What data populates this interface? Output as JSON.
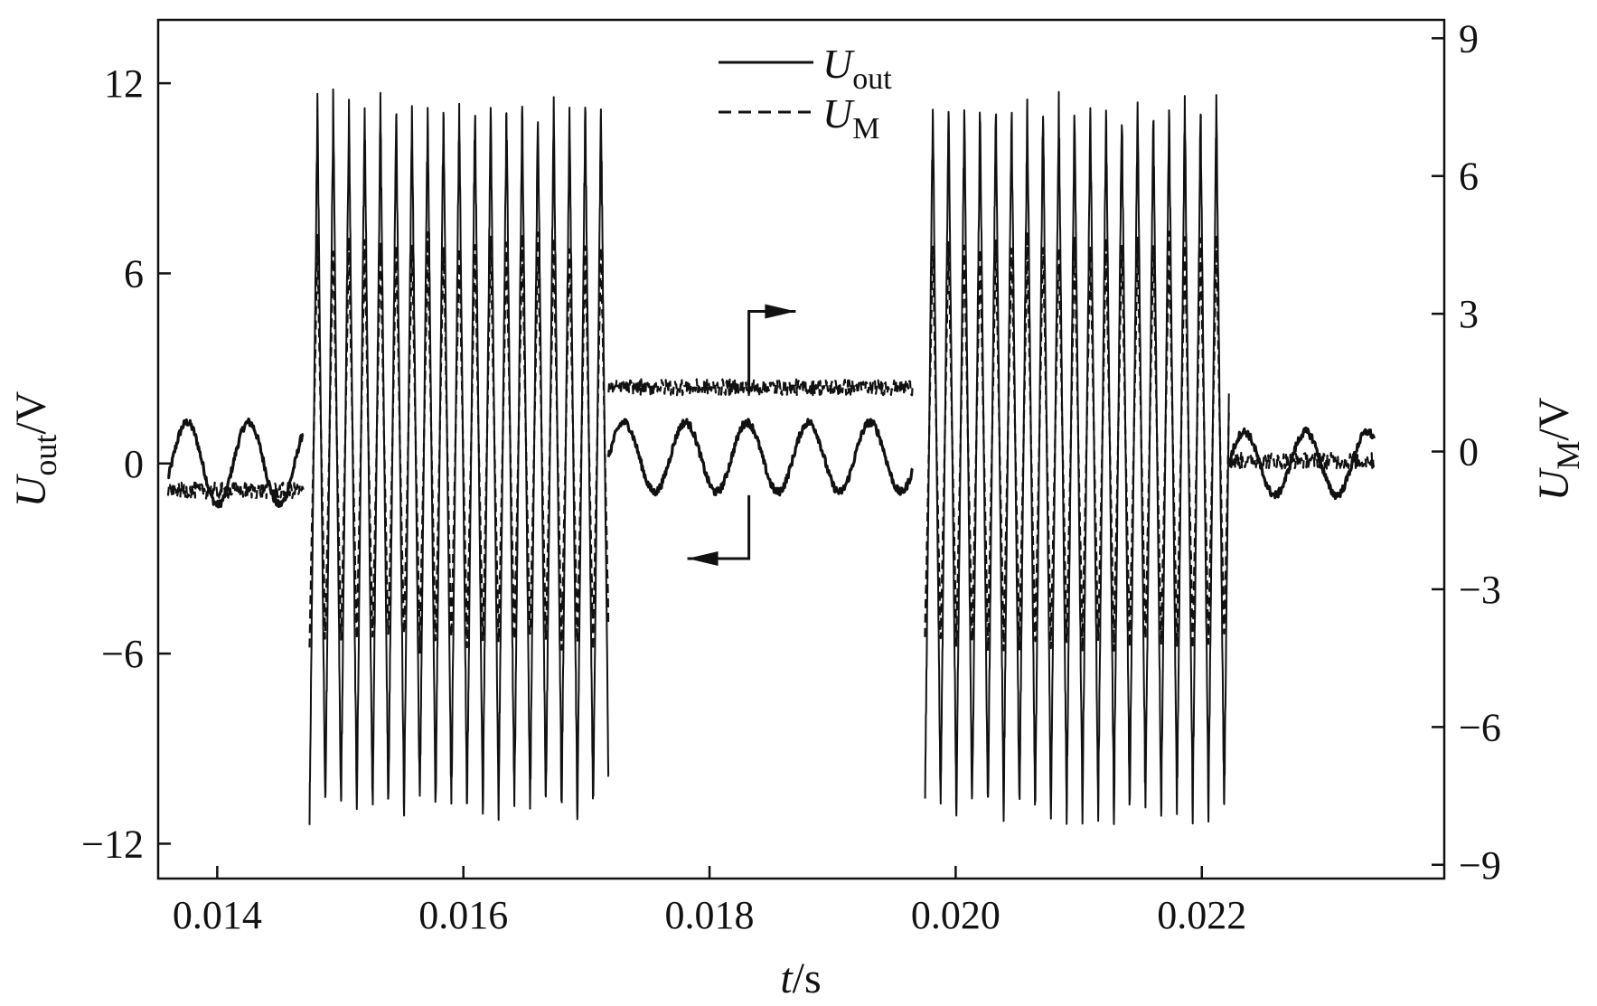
{
  "chart_data": {
    "type": "line",
    "x_axis": {
      "label_italic": "t",
      "label_rest": "/s",
      "range": [
        0.01352,
        0.02397
      ],
      "ticks": [
        0.014,
        0.016,
        0.018,
        0.02,
        0.022
      ],
      "tick_labels": [
        "0.014",
        "0.016",
        "0.018",
        "0.020",
        "0.022"
      ]
    },
    "y_axis_left": {
      "label_italic": "U",
      "label_sub": "out",
      "label_rest": "/V",
      "range": [
        -13.1,
        14.0
      ],
      "ticks": [
        -12,
        -6,
        0,
        6,
        12
      ],
      "tick_labels": [
        "−12",
        "−6",
        "0",
        "6",
        "12"
      ]
    },
    "y_axis_right": {
      "label_italic": "U",
      "label_sub": "M",
      "label_rest": "/V",
      "range": [
        -9.3,
        9.4
      ],
      "ticks": [
        -9,
        -6,
        -3,
        0,
        3,
        6,
        9
      ],
      "tick_labels": [
        "−9",
        "−6",
        "−3",
        "0",
        "3",
        "6",
        "9"
      ]
    },
    "series": [
      {
        "name_italic": "U",
        "name_sub": "out",
        "style": "solid",
        "axis": "left",
        "color": "#111111",
        "segments": [
          {
            "kind": "sine",
            "t_start": 0.0136,
            "t_end": 0.0147,
            "amplitude": 1.3,
            "offset": 0.0,
            "period": 0.0005,
            "phase": 3e-05
          },
          {
            "kind": "burst",
            "t_start": 0.01475,
            "t_end": 0.01718,
            "peak_positive": 11.6,
            "peak_negative": -11.3,
            "period": 0.000128
          },
          {
            "kind": "sine",
            "t_start": 0.01718,
            "t_end": 0.01965,
            "amplitude": 1.1,
            "offset": 0.2,
            "period": 0.0005,
            "phase": 0.0
          },
          {
            "kind": "burst",
            "t_start": 0.01975,
            "t_end": 0.02222,
            "peak_positive": 11.6,
            "peak_negative": -11.3,
            "period": 0.000128
          },
          {
            "kind": "sine",
            "t_start": 0.02222,
            "t_end": 0.0234,
            "amplitude": 1.0,
            "offset": 0.0,
            "period": 0.0005,
            "phase": 0.0
          }
        ]
      },
      {
        "name_italic": "U",
        "name_sub": "M",
        "style": "dashed",
        "axis": "right",
        "color": "#111111",
        "segments": [
          {
            "kind": "level",
            "t_start": 0.0136,
            "t_end": 0.0147,
            "level": -0.85
          },
          {
            "kind": "burst",
            "t_start": 0.01475,
            "t_end": 0.01718,
            "peak_positive": 4.7,
            "peak_negative": -4.3,
            "period": 0.000128
          },
          {
            "kind": "level",
            "t_start": 0.01718,
            "t_end": 0.01965,
            "level": 1.4
          },
          {
            "kind": "burst",
            "t_start": 0.01975,
            "t_end": 0.02222,
            "peak_positive": 4.7,
            "peak_negative": -4.3,
            "period": 0.000128
          },
          {
            "kind": "level",
            "t_start": 0.02222,
            "t_end": 0.0234,
            "level": -0.2
          }
        ]
      }
    ],
    "annotations": [
      {
        "kind": "arrow",
        "points_to": "right-axis",
        "anchor_t": 0.01832,
        "anchor_y_left": 2.2,
        "corner_y_left": 4.8,
        "tip_t": 0.0187
      },
      {
        "kind": "arrow",
        "points_to": "left-axis",
        "anchor_t": 0.01832,
        "anchor_y_left": -1.0,
        "corner_y_left": -3.0,
        "tip_t": 0.01782
      }
    ],
    "legend": {
      "placement": "top-center",
      "entries": [
        "U_out",
        "U_M"
      ]
    },
    "grid": false
  }
}
